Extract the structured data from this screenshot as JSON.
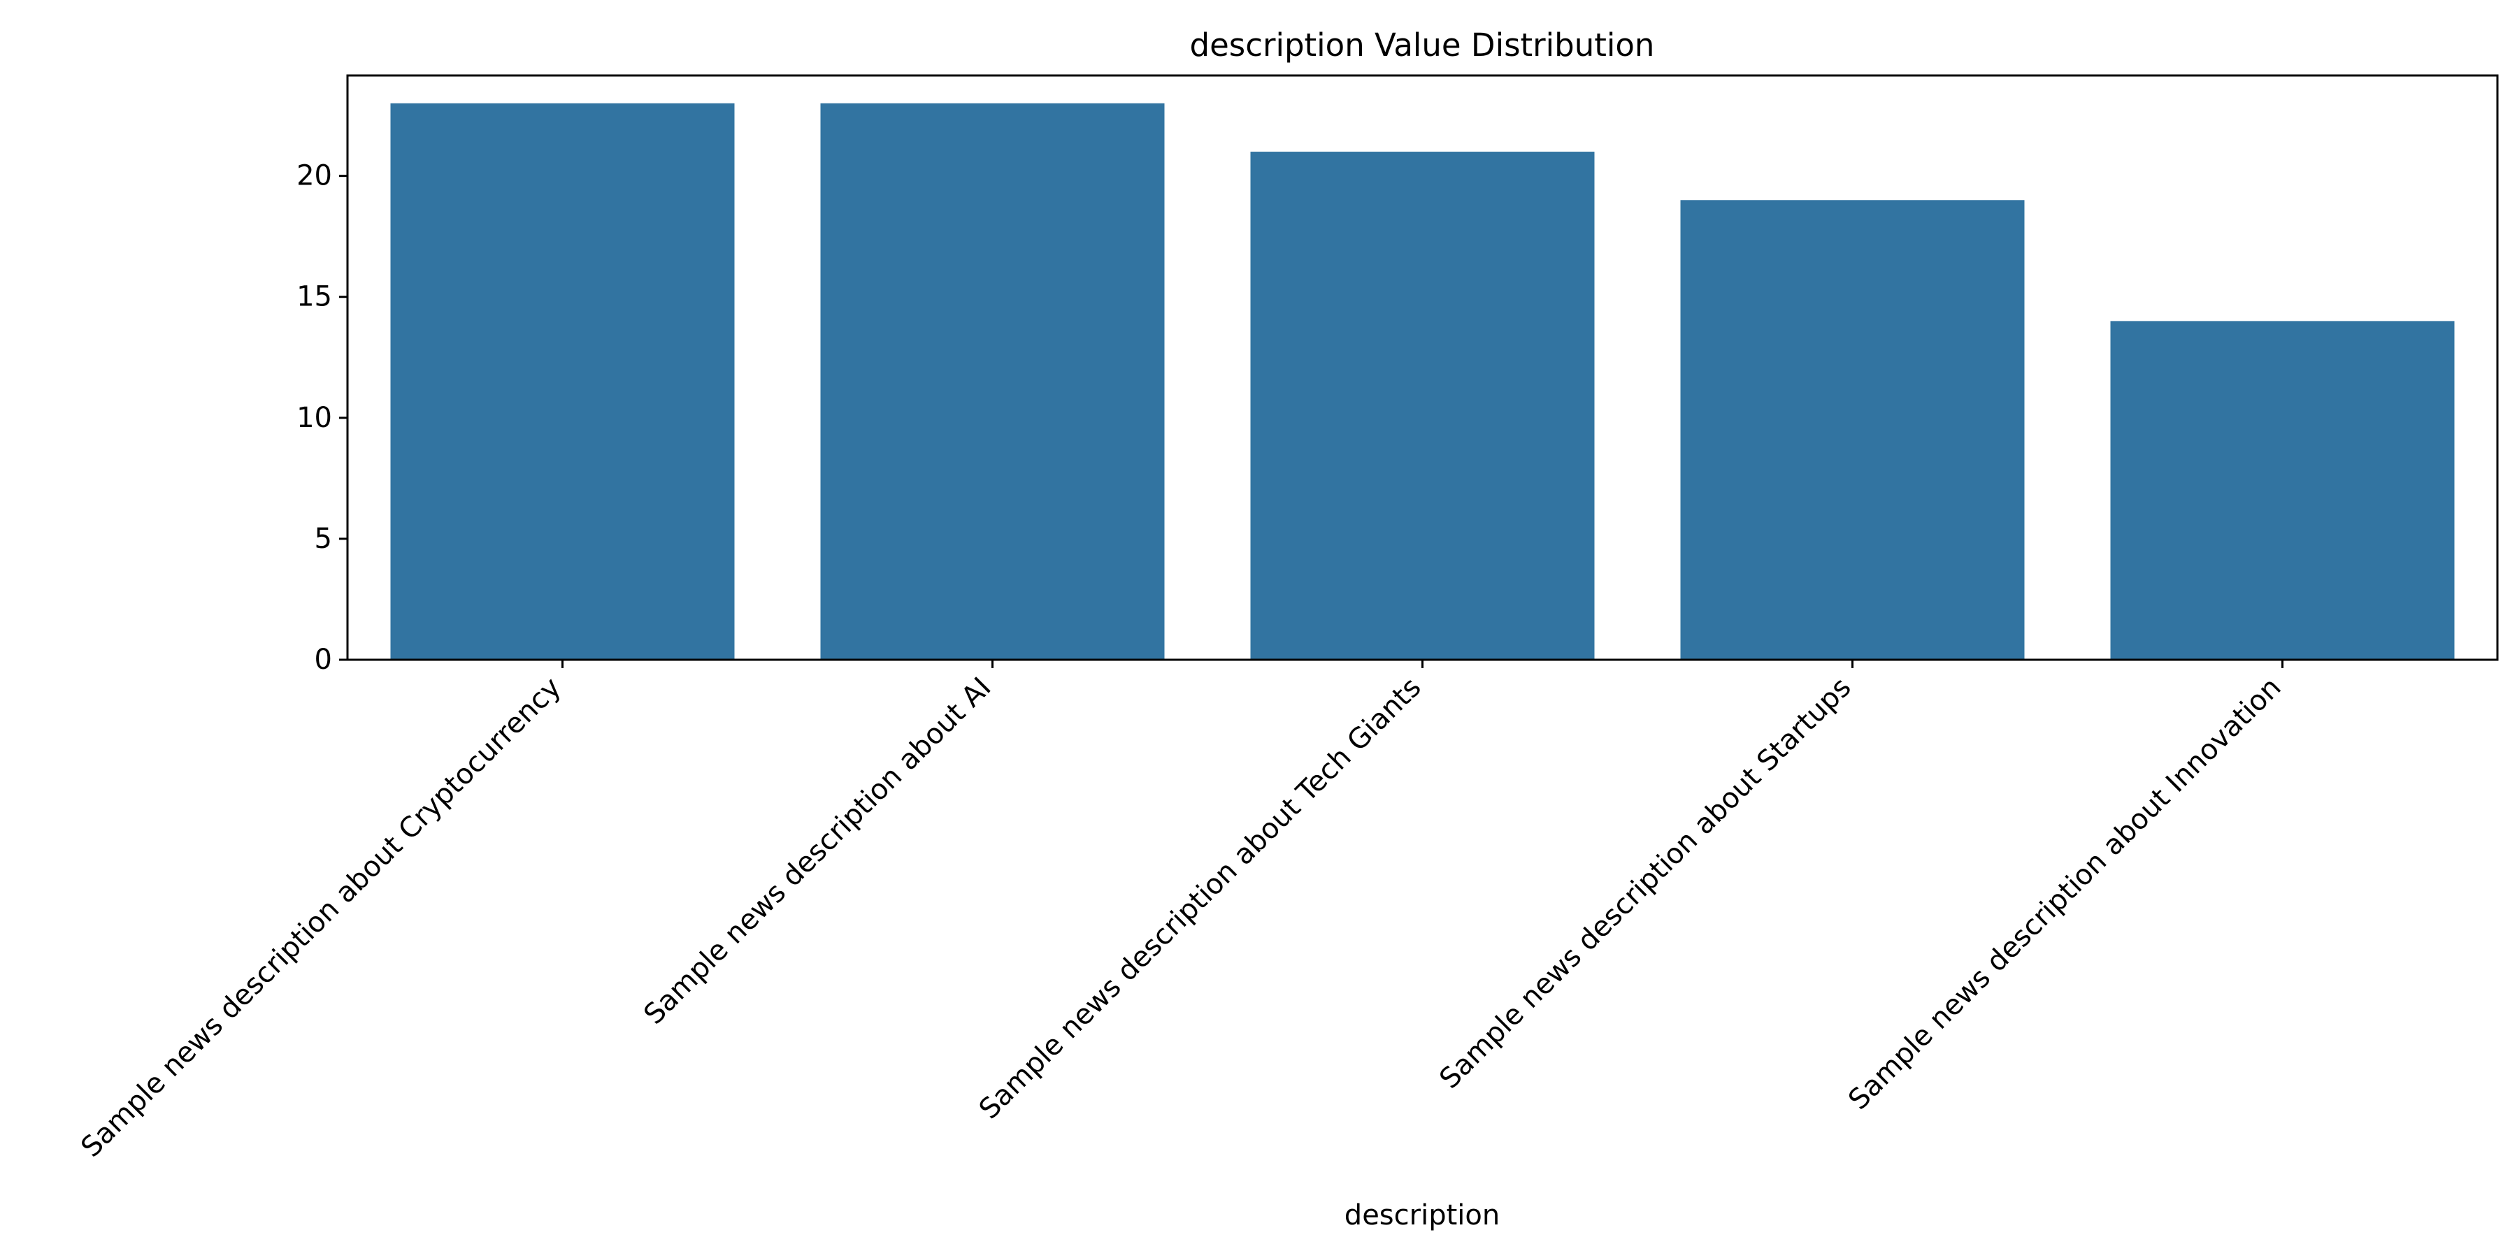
{
  "chart_data": {
    "type": "bar",
    "title": "description Value Distribution",
    "xlabel": "description",
    "ylabel": "",
    "categories": [
      "Sample news description about Cryptocurrency",
      "Sample news description about AI",
      "Sample news description about Tech Giants",
      "Sample news description about Startups",
      "Sample news description about Innovation"
    ],
    "values": [
      23,
      23,
      21,
      19,
      14
    ],
    "ylim": [
      0,
      24.15
    ],
    "yticks": [
      0,
      5,
      10,
      15,
      20
    ],
    "grid": false,
    "legend": "none",
    "colors": {
      "bar": "#3274a1",
      "axis": "#000000",
      "background": "#ffffff"
    }
  }
}
